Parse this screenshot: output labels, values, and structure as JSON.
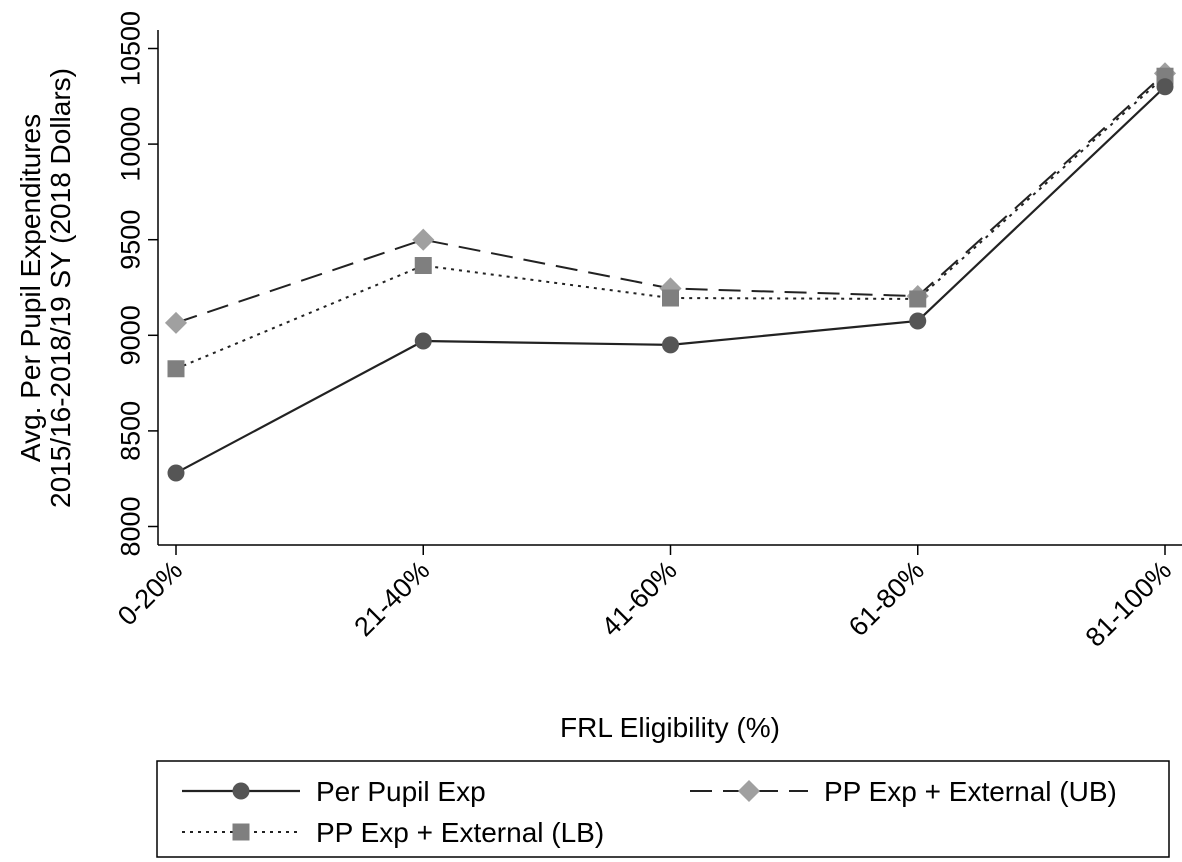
{
  "chart_data": {
    "type": "line",
    "title": "",
    "xlabel": "FRL Eligibility (%)",
    "ylabel_lines": [
      "Avg. Per Pupil Expenditures",
      "2015/16-2018/19 SY (2018 Dollars)"
    ],
    "categories": [
      "0-20%",
      "21-40%",
      "41-60%",
      "61-80%",
      "81-100%"
    ],
    "ylim": [
      8000,
      10500
    ],
    "yticks": [
      8000,
      8500,
      9000,
      9500,
      10000,
      10500
    ],
    "grid": false,
    "legend_position": "bottom",
    "series": [
      {
        "name": "Per Pupil Exp",
        "values": [
          8280,
          8970,
          8950,
          9075,
          10300
        ],
        "color": "#555555",
        "line_style": "solid",
        "marker": "circle"
      },
      {
        "name": "PP Exp + External (UB)",
        "values": [
          9065,
          9500,
          9245,
          9205,
          10370
        ],
        "color": "#a0a0a0",
        "line_style": "dashed",
        "marker": "diamond"
      },
      {
        "name": "PP Exp + External (LB)",
        "values": [
          8825,
          9365,
          9195,
          9190,
          10355
        ],
        "color": "#7f7f7f",
        "line_style": "dotted",
        "marker": "square"
      }
    ]
  }
}
